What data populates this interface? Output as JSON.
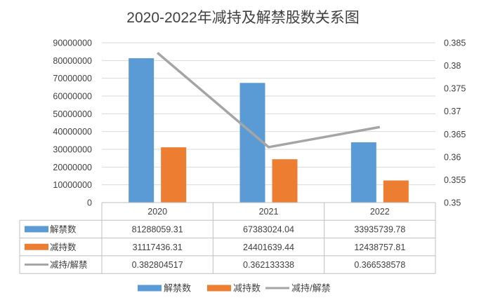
{
  "chart_data": {
    "type": "bar",
    "title": "2020-2022年减持及解禁股数关系图",
    "categories": [
      "2020",
      "2021",
      "2022"
    ],
    "series": [
      {
        "name": "解禁数",
        "type": "bar",
        "axis": "left",
        "color": "#5B9BD5",
        "values": [
          81288059.31,
          67383024.04,
          33935739.78
        ],
        "labels": [
          "81288059.31",
          "67383024.04",
          "33935739.78"
        ]
      },
      {
        "name": "减持数",
        "type": "bar",
        "axis": "left",
        "color": "#ED7D31",
        "values": [
          31117436.31,
          24401639.44,
          12438757.81
        ],
        "labels": [
          "31117436.31",
          "24401639.44",
          "12438757.81"
        ]
      },
      {
        "name": "减持/解禁",
        "type": "line",
        "axis": "right",
        "color": "#A5A5A5",
        "values": [
          0.382804517,
          0.362133338,
          0.366538578
        ],
        "labels": [
          "0.382804517",
          "0.362133338",
          "0.366538578"
        ]
      }
    ],
    "y_left": {
      "min": 0,
      "max": 90000000,
      "step": 10000000,
      "ticks": [
        "0",
        "10000000",
        "20000000",
        "30000000",
        "40000000",
        "50000000",
        "60000000",
        "70000000",
        "80000000",
        "90000000"
      ]
    },
    "y_right": {
      "min": 0.35,
      "max": 0.385,
      "step": 0.005,
      "ticks": [
        "0.35",
        "0.355",
        "0.36",
        "0.365",
        "0.37",
        "0.375",
        "0.38",
        "0.385"
      ]
    },
    "grid": true,
    "legend_position": "bottom",
    "data_table": true
  }
}
